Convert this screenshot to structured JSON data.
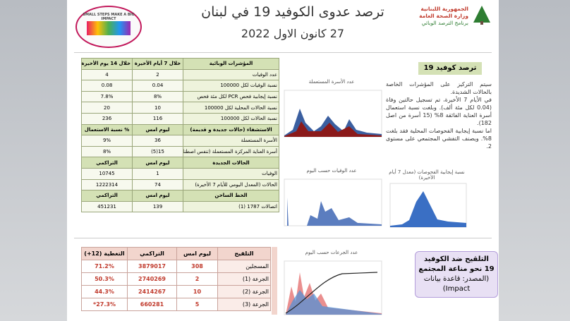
{
  "header": {
    "title": "ترصد عدوى الكوفيد 19 في لبنان",
    "date": "27 كانون الاول 2022",
    "org": [
      "الجمهورية اللبنانية",
      "وزارة الصحة العامة",
      "برنامج الترصد الوبائي"
    ],
    "slogan": "SMALL STEPS MAKE A BIG IMPACT"
  },
  "indicators": {
    "header": [
      "المؤشرات الوبائية",
      "خلال 7 أيام الأخيرة",
      "خلال 14 يوم الأخيرة"
    ],
    "sections": [
      {
        "rows": [
          [
            "عدد الوفيات",
            "2",
            "4"
          ],
          [
            "نسبة الوفيات لكل 100000",
            "0.04",
            "0.08"
          ],
          [
            "نسبة إيجابية فحص PCR لكل مئة فحص",
            "8%",
            "7.8%"
          ],
          [
            "نسبة الحالات المحلية لكل 100000",
            "10",
            "20"
          ],
          [
            "نسبة الحالات لكل 100000",
            "116",
            "236"
          ]
        ]
      },
      {
        "header": [
          "الاستشفاء (حالات جديدة و قديمة)",
          "ليوم امس",
          "% نسبة الاستعمال"
        ],
        "rows": [
          [
            "الأسرة المستعملة",
            "36",
            "9%"
          ],
          [
            "أسرة العناية المركزة المستعملة (تنفس اصطناعي)",
            "15(5)",
            "8%"
          ]
        ]
      },
      {
        "header": [
          "الحالات الجديدة",
          "ليوم امس",
          "التراكمي"
        ],
        "rows": [
          [
            "الوفيات",
            "1",
            "10745"
          ],
          [
            "الحالات (المعدل اليومي للأيام 7 الأخيرة)",
            "74",
            "1222314"
          ]
        ]
      },
      {
        "header": [
          "الخط الساخن",
          "ليوم امس",
          "التراكمي"
        ],
        "rows": [
          [
            "اتصالات 1787 (1)",
            "139",
            "451231"
          ]
        ]
      }
    ]
  },
  "charts": {
    "beds": "عدد الأسرة المستعملة",
    "deaths": "عدد الوفيات حسب اليوم",
    "positivity": "نسبة إيجابية الفحوصات (معدل 7 أيام الأخيرة)",
    "doses": "عدد الجرعات حسب اليوم"
  },
  "summary": {
    "title": "ترصد كوفيد 19",
    "paragraphs": [
      "سيتم التركيز على المؤشرات الخاصة بالحالات الشديدة.",
      "في الأيام 7 الأخيرة، تم تسجيل حالتين وفاة (0.04 لكل مئة ألف). وبلغت نسبة استعمال أسرة العناية الفائقة 8% (15 أسرة من اصل 182).",
      "اما نسبة إيجابية الفحوصات المحلية فقد بلغت 8%. ويصنف التفشي المجتمعي على مستوى 2."
    ]
  },
  "vaccination": {
    "header": [
      "التلقيح",
      "ليوم امس",
      "التراكمي",
      "التغطية (12+)"
    ],
    "rows": [
      [
        "المسجلين",
        "308",
        "3879017",
        "71.2%"
      ],
      [
        "الجرعة (1)",
        "2",
        "2740269",
        "50.3%"
      ],
      [
        "الجرعة (2)",
        "10",
        "2414267",
        "44.3%"
      ],
      [
        "الجرعة (3)",
        "5",
        "660281",
        "27.3%*"
      ]
    ],
    "box_title": "التلقيح ضد الكوفيد 19 نحو مناعة المجتمع",
    "box_source": "(المصدر: قاعدة بيانات Impact)"
  }
}
